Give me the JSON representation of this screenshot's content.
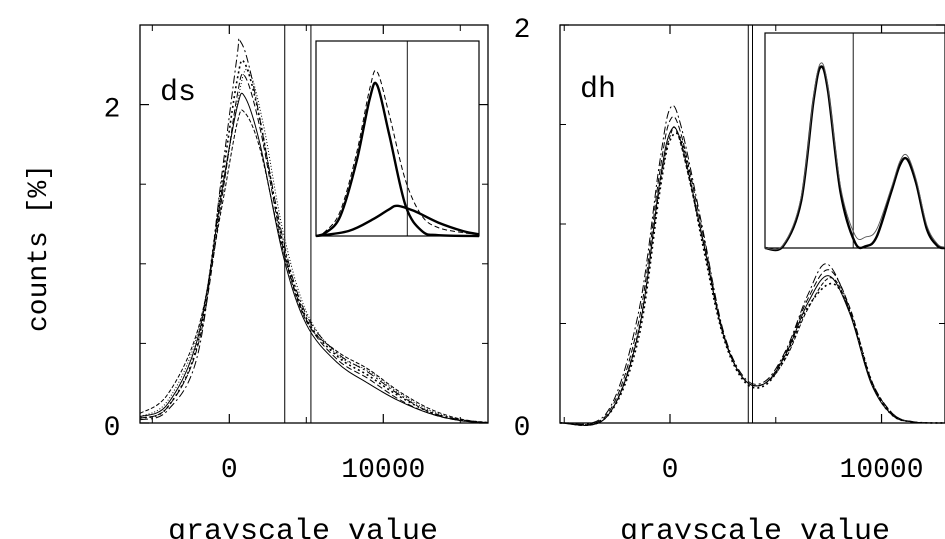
{
  "y_axis_label": "counts [%]",
  "chart_data": [
    {
      "type": "line",
      "panel_label": "ds",
      "xlabel": "grayscale value",
      "ylabel": "counts [%]",
      "xlim": [
        -5800,
        16800
      ],
      "ylim": [
        0,
        2.5
      ],
      "xticks": [
        0,
        10000
      ],
      "xtick_labels": [
        "0",
        "10000"
      ],
      "yticks": [
        0,
        2
      ],
      "ytick_labels": [
        "0",
        "2"
      ],
      "grid": false,
      "threshold_lines_x": [
        3600,
        5300
      ],
      "series": [
        {
          "values": [
            [
              -5800,
              0.04
            ],
            [
              -4000,
              0.12
            ],
            [
              -2000,
              0.55
            ],
            [
              -500,
              1.45
            ],
            [
              500,
              1.98
            ],
            [
              1000,
              2.05
            ],
            [
              2000,
              1.75
            ],
            [
              3500,
              1.05
            ],
            [
              5000,
              0.62
            ],
            [
              7000,
              0.38
            ],
            [
              9000,
              0.25
            ],
            [
              11000,
              0.14
            ],
            [
              13000,
              0.06
            ],
            [
              15000,
              0.015
            ],
            [
              16800,
              0.002
            ]
          ]
        },
        {
          "values": [
            [
              -5800,
              0.03
            ],
            [
              -4000,
              0.1
            ],
            [
              -2000,
              0.5
            ],
            [
              -500,
              1.4
            ],
            [
              500,
              2.05
            ],
            [
              1000,
              2.18
            ],
            [
              2000,
              1.85
            ],
            [
              3500,
              1.1
            ],
            [
              5000,
              0.65
            ],
            [
              7000,
              0.4
            ],
            [
              9000,
              0.28
            ],
            [
              11000,
              0.15
            ],
            [
              13000,
              0.06
            ],
            [
              15000,
              0.015
            ],
            [
              16800,
              0.002
            ]
          ]
        },
        {
          "values": [
            [
              -5800,
              0.03
            ],
            [
              -4000,
              0.1
            ],
            [
              -2000,
              0.52
            ],
            [
              -500,
              1.5
            ],
            [
              500,
              2.15
            ],
            [
              1000,
              2.26
            ],
            [
              2000,
              1.9
            ],
            [
              3500,
              1.12
            ],
            [
              5000,
              0.66
            ],
            [
              7000,
              0.42
            ],
            [
              9000,
              0.3
            ],
            [
              11000,
              0.17
            ],
            [
              13000,
              0.07
            ],
            [
              15000,
              0.02
            ],
            [
              16800,
              0.002
            ]
          ]
        },
        {
          "values": [
            [
              -5800,
              0.02
            ],
            [
              -4000,
              0.08
            ],
            [
              -2000,
              0.45
            ],
            [
              -500,
              1.55
            ],
            [
              500,
              2.3
            ],
            [
              700,
              2.4
            ],
            [
              1500,
              2.15
            ],
            [
              3500,
              1.15
            ],
            [
              5000,
              0.68
            ],
            [
              7000,
              0.44
            ],
            [
              9000,
              0.32
            ],
            [
              11000,
              0.18
            ],
            [
              13000,
              0.07
            ],
            [
              15000,
              0.02
            ],
            [
              16800,
              0.002
            ]
          ]
        },
        {
          "values": [
            [
              -5800,
              0.06
            ],
            [
              -4000,
              0.18
            ],
            [
              -2000,
              0.6
            ],
            [
              -500,
              1.35
            ],
            [
              500,
              1.88
            ],
            [
              1000,
              1.95
            ],
            [
              2000,
              1.72
            ],
            [
              3500,
              1.08
            ],
            [
              5000,
              0.64
            ],
            [
              7000,
              0.45
            ],
            [
              9000,
              0.34
            ],
            [
              11000,
              0.2
            ],
            [
              13000,
              0.09
            ],
            [
              15000,
              0.025
            ],
            [
              16800,
              0.003
            ]
          ]
        },
        {
          "values": [
            [
              -5800,
              0.04
            ],
            [
              -4000,
              0.14
            ],
            [
              -2000,
              0.58
            ],
            [
              -500,
              1.42
            ],
            [
              500,
              2.0
            ],
            [
              1200,
              2.22
            ],
            [
              2200,
              1.88
            ],
            [
              3500,
              1.2
            ],
            [
              5000,
              0.7
            ],
            [
              7000,
              0.43
            ],
            [
              9000,
              0.33
            ],
            [
              11000,
              0.19
            ],
            [
              13000,
              0.08
            ],
            [
              15000,
              0.02
            ],
            [
              16800,
              0.002
            ]
          ]
        }
      ],
      "inset": {
        "type": "line",
        "threshold_line_x": 0.56,
        "series": [
          {
            "style": "thick",
            "values": [
              [
                0,
                0
              ],
              [
                0.06,
                0.02
              ],
              [
                0.15,
                0.12
              ],
              [
                0.25,
                0.45
              ],
              [
                0.33,
                0.82
              ],
              [
                0.375,
                0.9
              ],
              [
                0.45,
                0.6
              ],
              [
                0.55,
                0.18
              ],
              [
                0.65,
                0.03
              ],
              [
                0.75,
                0.005
              ],
              [
                1.0,
                0
              ]
            ]
          },
          {
            "style": "thick",
            "values": [
              [
                0,
                0
              ],
              [
                0.2,
                0.03
              ],
              [
                0.35,
                0.1
              ],
              [
                0.45,
                0.16
              ],
              [
                0.5,
                0.18
              ],
              [
                0.6,
                0.15
              ],
              [
                0.75,
                0.08
              ],
              [
                0.9,
                0.03
              ],
              [
                1.0,
                0.01
              ]
            ]
          },
          {
            "style": "dashed",
            "values": [
              [
                0,
                0
              ],
              [
                0.06,
                0.03
              ],
              [
                0.15,
                0.15
              ],
              [
                0.25,
                0.5
              ],
              [
                0.33,
                0.88
              ],
              [
                0.375,
                0.98
              ],
              [
                0.45,
                0.72
              ],
              [
                0.55,
                0.33
              ],
              [
                0.65,
                0.12
              ],
              [
                0.75,
                0.05
              ],
              [
                0.9,
                0.02
              ],
              [
                1.0,
                0.01
              ]
            ]
          }
        ]
      }
    },
    {
      "type": "line",
      "panel_label": "dh",
      "xlabel": "grayscale value",
      "ylim": [
        0,
        2
      ],
      "xlim": [
        -5200,
        13000
      ],
      "xticks": [
        0,
        10000
      ],
      "xtick_labels": [
        "0",
        "10000"
      ],
      "yticks": [
        0,
        2
      ],
      "ytick_labels": [
        "0",
        "2"
      ],
      "grid": false,
      "threshold_lines_x": [
        3700,
        3900
      ],
      "series": [
        {
          "values": [
            [
              -5200,
              0
            ],
            [
              -3000,
              0.03
            ],
            [
              -1500,
              0.45
            ],
            [
              -500,
              1.2
            ],
            [
              0,
              1.46
            ],
            [
              500,
              1.42
            ],
            [
              1500,
              0.95
            ],
            [
              2500,
              0.45
            ],
            [
              3500,
              0.22
            ],
            [
              4500,
              0.2
            ],
            [
              5500,
              0.35
            ],
            [
              6500,
              0.6
            ],
            [
              7500,
              0.74
            ],
            [
              8500,
              0.55
            ],
            [
              9500,
              0.2
            ],
            [
              10500,
              0.04
            ],
            [
              11500,
              0.005
            ],
            [
              13000,
              0
            ]
          ]
        },
        {
          "values": [
            [
              -5200,
              0
            ],
            [
              -3000,
              0.04
            ],
            [
              -1500,
              0.5
            ],
            [
              -500,
              1.25
            ],
            [
              0,
              1.52
            ],
            [
              500,
              1.46
            ],
            [
              1500,
              0.98
            ],
            [
              2500,
              0.46
            ],
            [
              3500,
              0.22
            ],
            [
              4500,
              0.2
            ],
            [
              5500,
              0.36
            ],
            [
              6500,
              0.62
            ],
            [
              7500,
              0.77
            ],
            [
              8500,
              0.58
            ],
            [
              9500,
              0.22
            ],
            [
              10500,
              0.05
            ],
            [
              11500,
              0.005
            ],
            [
              13000,
              0
            ]
          ]
        },
        {
          "values": [
            [
              -5200,
              0
            ],
            [
              -3000,
              0.03
            ],
            [
              -1500,
              0.42
            ],
            [
              -500,
              1.15
            ],
            [
              0,
              1.42
            ],
            [
              600,
              1.4
            ],
            [
              1500,
              0.92
            ],
            [
              2500,
              0.44
            ],
            [
              3500,
              0.21
            ],
            [
              4500,
              0.19
            ],
            [
              5500,
              0.34
            ],
            [
              6500,
              0.58
            ],
            [
              7700,
              0.7
            ],
            [
              8600,
              0.53
            ],
            [
              9600,
              0.19
            ],
            [
              10500,
              0.04
            ],
            [
              11500,
              0.005
            ],
            [
              13000,
              0
            ]
          ]
        },
        {
          "values": [
            [
              -5200,
              0
            ],
            [
              -3000,
              0.05
            ],
            [
              -1500,
              0.55
            ],
            [
              -500,
              1.3
            ],
            [
              0,
              1.58
            ],
            [
              500,
              1.5
            ],
            [
              1500,
              1.0
            ],
            [
              2500,
              0.47
            ],
            [
              3500,
              0.23
            ],
            [
              4500,
              0.21
            ],
            [
              5500,
              0.37
            ],
            [
              6500,
              0.64
            ],
            [
              7400,
              0.8
            ],
            [
              8400,
              0.6
            ],
            [
              9400,
              0.24
            ],
            [
              10500,
              0.05
            ],
            [
              11500,
              0.006
            ],
            [
              13000,
              0
            ]
          ]
        },
        {
          "values": [
            [
              -5200,
              0
            ],
            [
              -3000,
              0.03
            ],
            [
              -1500,
              0.46
            ],
            [
              -500,
              1.18
            ],
            [
              0,
              1.44
            ],
            [
              400,
              1.44
            ],
            [
              1500,
              0.94
            ],
            [
              2500,
              0.45
            ],
            [
              3500,
              0.22
            ],
            [
              4500,
              0.2
            ],
            [
              5500,
              0.33
            ],
            [
              6500,
              0.57
            ],
            [
              7600,
              0.73
            ],
            [
              8500,
              0.56
            ],
            [
              9500,
              0.21
            ],
            [
              10500,
              0.045
            ],
            [
              11500,
              0.005
            ],
            [
              13000,
              0
            ]
          ]
        }
      ],
      "inset": {
        "type": "line",
        "threshold_line_x": 0.49,
        "series": [
          {
            "style": "thick",
            "values": [
              [
                0,
                0
              ],
              [
                0.1,
                0.01
              ],
              [
                0.2,
                0.25
              ],
              [
                0.27,
                0.8
              ],
              [
                0.31,
                0.98
              ],
              [
                0.35,
                0.85
              ],
              [
                0.42,
                0.3
              ],
              [
                0.5,
                0.03
              ],
              [
                0.56,
                0.01
              ],
              [
                0.62,
                0.06
              ],
              [
                0.7,
                0.3
              ],
              [
                0.75,
                0.45
              ],
              [
                0.79,
                0.48
              ],
              [
                0.84,
                0.35
              ],
              [
                0.9,
                0.1
              ],
              [
                0.96,
                0.01
              ],
              [
                1.0,
                0
              ]
            ]
          },
          {
            "style": "thin",
            "values": [
              [
                0,
                0
              ],
              [
                0.1,
                0.015
              ],
              [
                0.2,
                0.27
              ],
              [
                0.27,
                0.82
              ],
              [
                0.31,
                1.0
              ],
              [
                0.35,
                0.87
              ],
              [
                0.42,
                0.33
              ],
              [
                0.5,
                0.07
              ],
              [
                0.56,
                0.06
              ],
              [
                0.62,
                0.1
              ],
              [
                0.7,
                0.32
              ],
              [
                0.75,
                0.47
              ],
              [
                0.79,
                0.5
              ],
              [
                0.84,
                0.37
              ],
              [
                0.9,
                0.12
              ],
              [
                0.96,
                0.02
              ],
              [
                1.0,
                0.005
              ]
            ]
          }
        ]
      }
    }
  ]
}
